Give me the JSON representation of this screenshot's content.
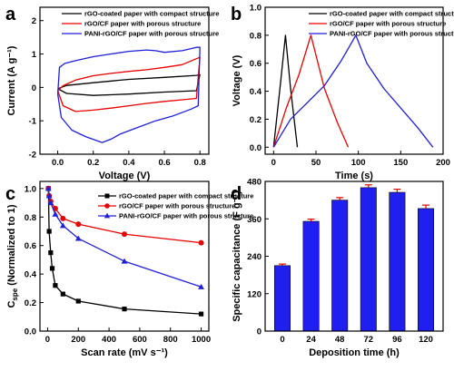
{
  "panels": {
    "a": "a",
    "b": "b",
    "c": "c",
    "d": "d"
  },
  "colors": {
    "black": "#000000",
    "red": "#e60000",
    "blue": "#1f1fd6",
    "bar": "#1f1ff0"
  },
  "chart_data": [
    {
      "panel": "a",
      "type": "line",
      "xlabel": "Voltage (V)",
      "ylabel": "Current (A g⁻¹)",
      "xlim": [
        -0.1,
        0.85
      ],
      "ylim": [
        -2,
        2.4
      ],
      "xticks": [
        0.0,
        0.2,
        0.4,
        0.6,
        0.8
      ],
      "xtick_labels": [
        "0.0",
        "0.2",
        "0.4",
        "0.6",
        "0.8"
      ],
      "yticks": [
        -2,
        -1,
        0,
        1,
        2
      ],
      "ytick_labels": [
        "-2",
        "-1",
        "0",
        "1",
        "2"
      ],
      "legend_position": "top-left",
      "series": [
        {
          "name": "rGO-coated paper with compact structure",
          "color": "#000000",
          "points": [
            [
              0.0,
              -0.04
            ],
            [
              0.05,
              -0.18
            ],
            [
              0.2,
              -0.24
            ],
            [
              0.4,
              -0.2
            ],
            [
              0.6,
              -0.14
            ],
            [
              0.78,
              -0.1
            ],
            [
              0.8,
              0.38
            ],
            [
              0.78,
              0.36
            ],
            [
              0.6,
              0.3
            ],
            [
              0.4,
              0.24
            ],
            [
              0.2,
              0.14
            ],
            [
              0.05,
              0.06
            ],
            [
              0.0,
              -0.04
            ]
          ]
        },
        {
          "name": "rGO/CF paper with porous structure",
          "color": "#e60000",
          "points": [
            [
              0.0,
              -0.1
            ],
            [
              0.03,
              -0.55
            ],
            [
              0.1,
              -0.72
            ],
            [
              0.2,
              -0.68
            ],
            [
              0.3,
              -0.62
            ],
            [
              0.4,
              -0.55
            ],
            [
              0.5,
              -0.48
            ],
            [
              0.6,
              -0.42
            ],
            [
              0.7,
              -0.37
            ],
            [
              0.78,
              -0.33
            ],
            [
              0.8,
              0.9
            ],
            [
              0.78,
              0.86
            ],
            [
              0.7,
              0.68
            ],
            [
              0.6,
              0.6
            ],
            [
              0.5,
              0.53
            ],
            [
              0.4,
              0.48
            ],
            [
              0.3,
              0.42
            ],
            [
              0.2,
              0.35
            ],
            [
              0.1,
              0.22
            ],
            [
              0.03,
              0.05
            ],
            [
              0.0,
              -0.1
            ]
          ]
        },
        {
          "name": "PANI-rGO/CF paper with porous structure",
          "color": "#1f1fd6",
          "points": [
            [
              0.0,
              -0.2
            ],
            [
              0.02,
              -0.9
            ],
            [
              0.08,
              -1.28
            ],
            [
              0.16,
              -1.48
            ],
            [
              0.25,
              -1.65
            ],
            [
              0.3,
              -1.55
            ],
            [
              0.35,
              -1.4
            ],
            [
              0.45,
              -1.2
            ],
            [
              0.55,
              -1.0
            ],
            [
              0.65,
              -0.85
            ],
            [
              0.75,
              -0.65
            ],
            [
              0.79,
              -0.55
            ],
            [
              0.8,
              1.2
            ],
            [
              0.78,
              1.2
            ],
            [
              0.7,
              1.1
            ],
            [
              0.6,
              1.05
            ],
            [
              0.55,
              1.1
            ],
            [
              0.5,
              1.12
            ],
            [
              0.4,
              1.08
            ],
            [
              0.3,
              1.0
            ],
            [
              0.2,
              0.92
            ],
            [
              0.1,
              0.8
            ],
            [
              0.04,
              0.72
            ],
            [
              0.01,
              0.6
            ],
            [
              0.0,
              -0.2
            ]
          ]
        }
      ]
    },
    {
      "panel": "b",
      "type": "line",
      "xlabel": "Time (s)",
      "ylabel": "Voltage (V)",
      "xlim": [
        -10,
        200
      ],
      "ylim": [
        -0.05,
        1.0
      ],
      "xticks": [
        0,
        50,
        100,
        150,
        200
      ],
      "xtick_labels": [
        "0",
        "50",
        "100",
        "150",
        "200"
      ],
      "yticks": [
        0.0,
        0.2,
        0.4,
        0.6,
        0.8,
        1.0
      ],
      "ytick_labels": [
        "0.0",
        "0.2",
        "0.4",
        "0.6",
        "0.8",
        "1.0"
      ],
      "legend_position": "top-right",
      "series": [
        {
          "name": "rGO-coated paper with compact structure",
          "color": "#000000",
          "points": [
            [
              0,
              0
            ],
            [
              8,
              0.45
            ],
            [
              14,
              0.8
            ],
            [
              20,
              0.42
            ],
            [
              28,
              0
            ]
          ]
        },
        {
          "name": "rGO/CF paper with porous structure",
          "color": "#e60000",
          "points": [
            [
              0,
              0
            ],
            [
              15,
              0.28
            ],
            [
              30,
              0.52
            ],
            [
              44,
              0.8
            ],
            [
              60,
              0.42
            ],
            [
              75,
              0.18
            ],
            [
              88,
              0
            ]
          ]
        },
        {
          "name": "PANI-rGO/CF paper with porous structure",
          "color": "#1f1fd6",
          "points": [
            [
              0,
              0
            ],
            [
              20,
              0.2
            ],
            [
              40,
              0.32
            ],
            [
              60,
              0.44
            ],
            [
              80,
              0.62
            ],
            [
              97,
              0.8
            ],
            [
              110,
              0.6
            ],
            [
              130,
              0.42
            ],
            [
              150,
              0.28
            ],
            [
              170,
              0.14
            ],
            [
              188,
              0
            ]
          ]
        }
      ]
    },
    {
      "panel": "c",
      "type": "line",
      "xlabel": "Scan rate (mV s⁻¹)",
      "ylabel": "C",
      "ylabel_sub": "spe",
      "ylabel_rest": " (Normalized to 1)",
      "xlim": [
        -50,
        1050
      ],
      "ylim": [
        0.0,
        1.05
      ],
      "xticks": [
        0,
        200,
        400,
        600,
        800,
        1000
      ],
      "xtick_labels": [
        "0",
        "200",
        "400",
        "600",
        "800",
        "1000"
      ],
      "yticks": [
        0.0,
        0.2,
        0.4,
        0.6,
        0.8,
        1.0
      ],
      "ytick_labels": [
        "0.0",
        "0.2",
        "0.4",
        "0.6",
        "0.8",
        "1.0"
      ],
      "legend_position": "top-right",
      "series": [
        {
          "name": "rGO-coated paper with compact structure",
          "color": "#000000",
          "marker": "square",
          "x": [
            5,
            10,
            20,
            30,
            50,
            100,
            200,
            500,
            1000
          ],
          "y": [
            1.0,
            0.7,
            0.55,
            0.44,
            0.32,
            0.26,
            0.21,
            0.155,
            0.12
          ]
        },
        {
          "name": "rGO/CF paper with porous structure",
          "color": "#e60000",
          "marker": "circle",
          "x": [
            5,
            10,
            20,
            50,
            100,
            200,
            500,
            1000
          ],
          "y": [
            1.0,
            0.95,
            0.91,
            0.86,
            0.79,
            0.75,
            0.68,
            0.62
          ]
        },
        {
          "name": "PANI-rGO/CF paper with porous structure",
          "color": "#1f1fd6",
          "marker": "triangle",
          "x": [
            5,
            10,
            20,
            50,
            100,
            200,
            500,
            1000
          ],
          "y": [
            1.0,
            0.95,
            0.9,
            0.82,
            0.74,
            0.65,
            0.49,
            0.31
          ]
        }
      ]
    },
    {
      "panel": "d",
      "type": "bar",
      "xlabel": "Deposition time (h)",
      "ylabel": "Specific capacitance (F g⁻¹)",
      "ylim": [
        0,
        480
      ],
      "yticks": [
        0,
        120,
        240,
        360,
        480
      ],
      "ytick_labels": [
        "0",
        "120",
        "240",
        "360",
        "480"
      ],
      "categories": [
        "0",
        "24",
        "48",
        "72",
        "96",
        "120"
      ],
      "values": [
        210,
        352,
        420,
        460,
        445,
        393
      ],
      "errors": [
        5,
        7,
        8,
        9,
        10,
        11
      ],
      "bar_color": "#1f1ff0",
      "error_color": "#e60000"
    }
  ]
}
